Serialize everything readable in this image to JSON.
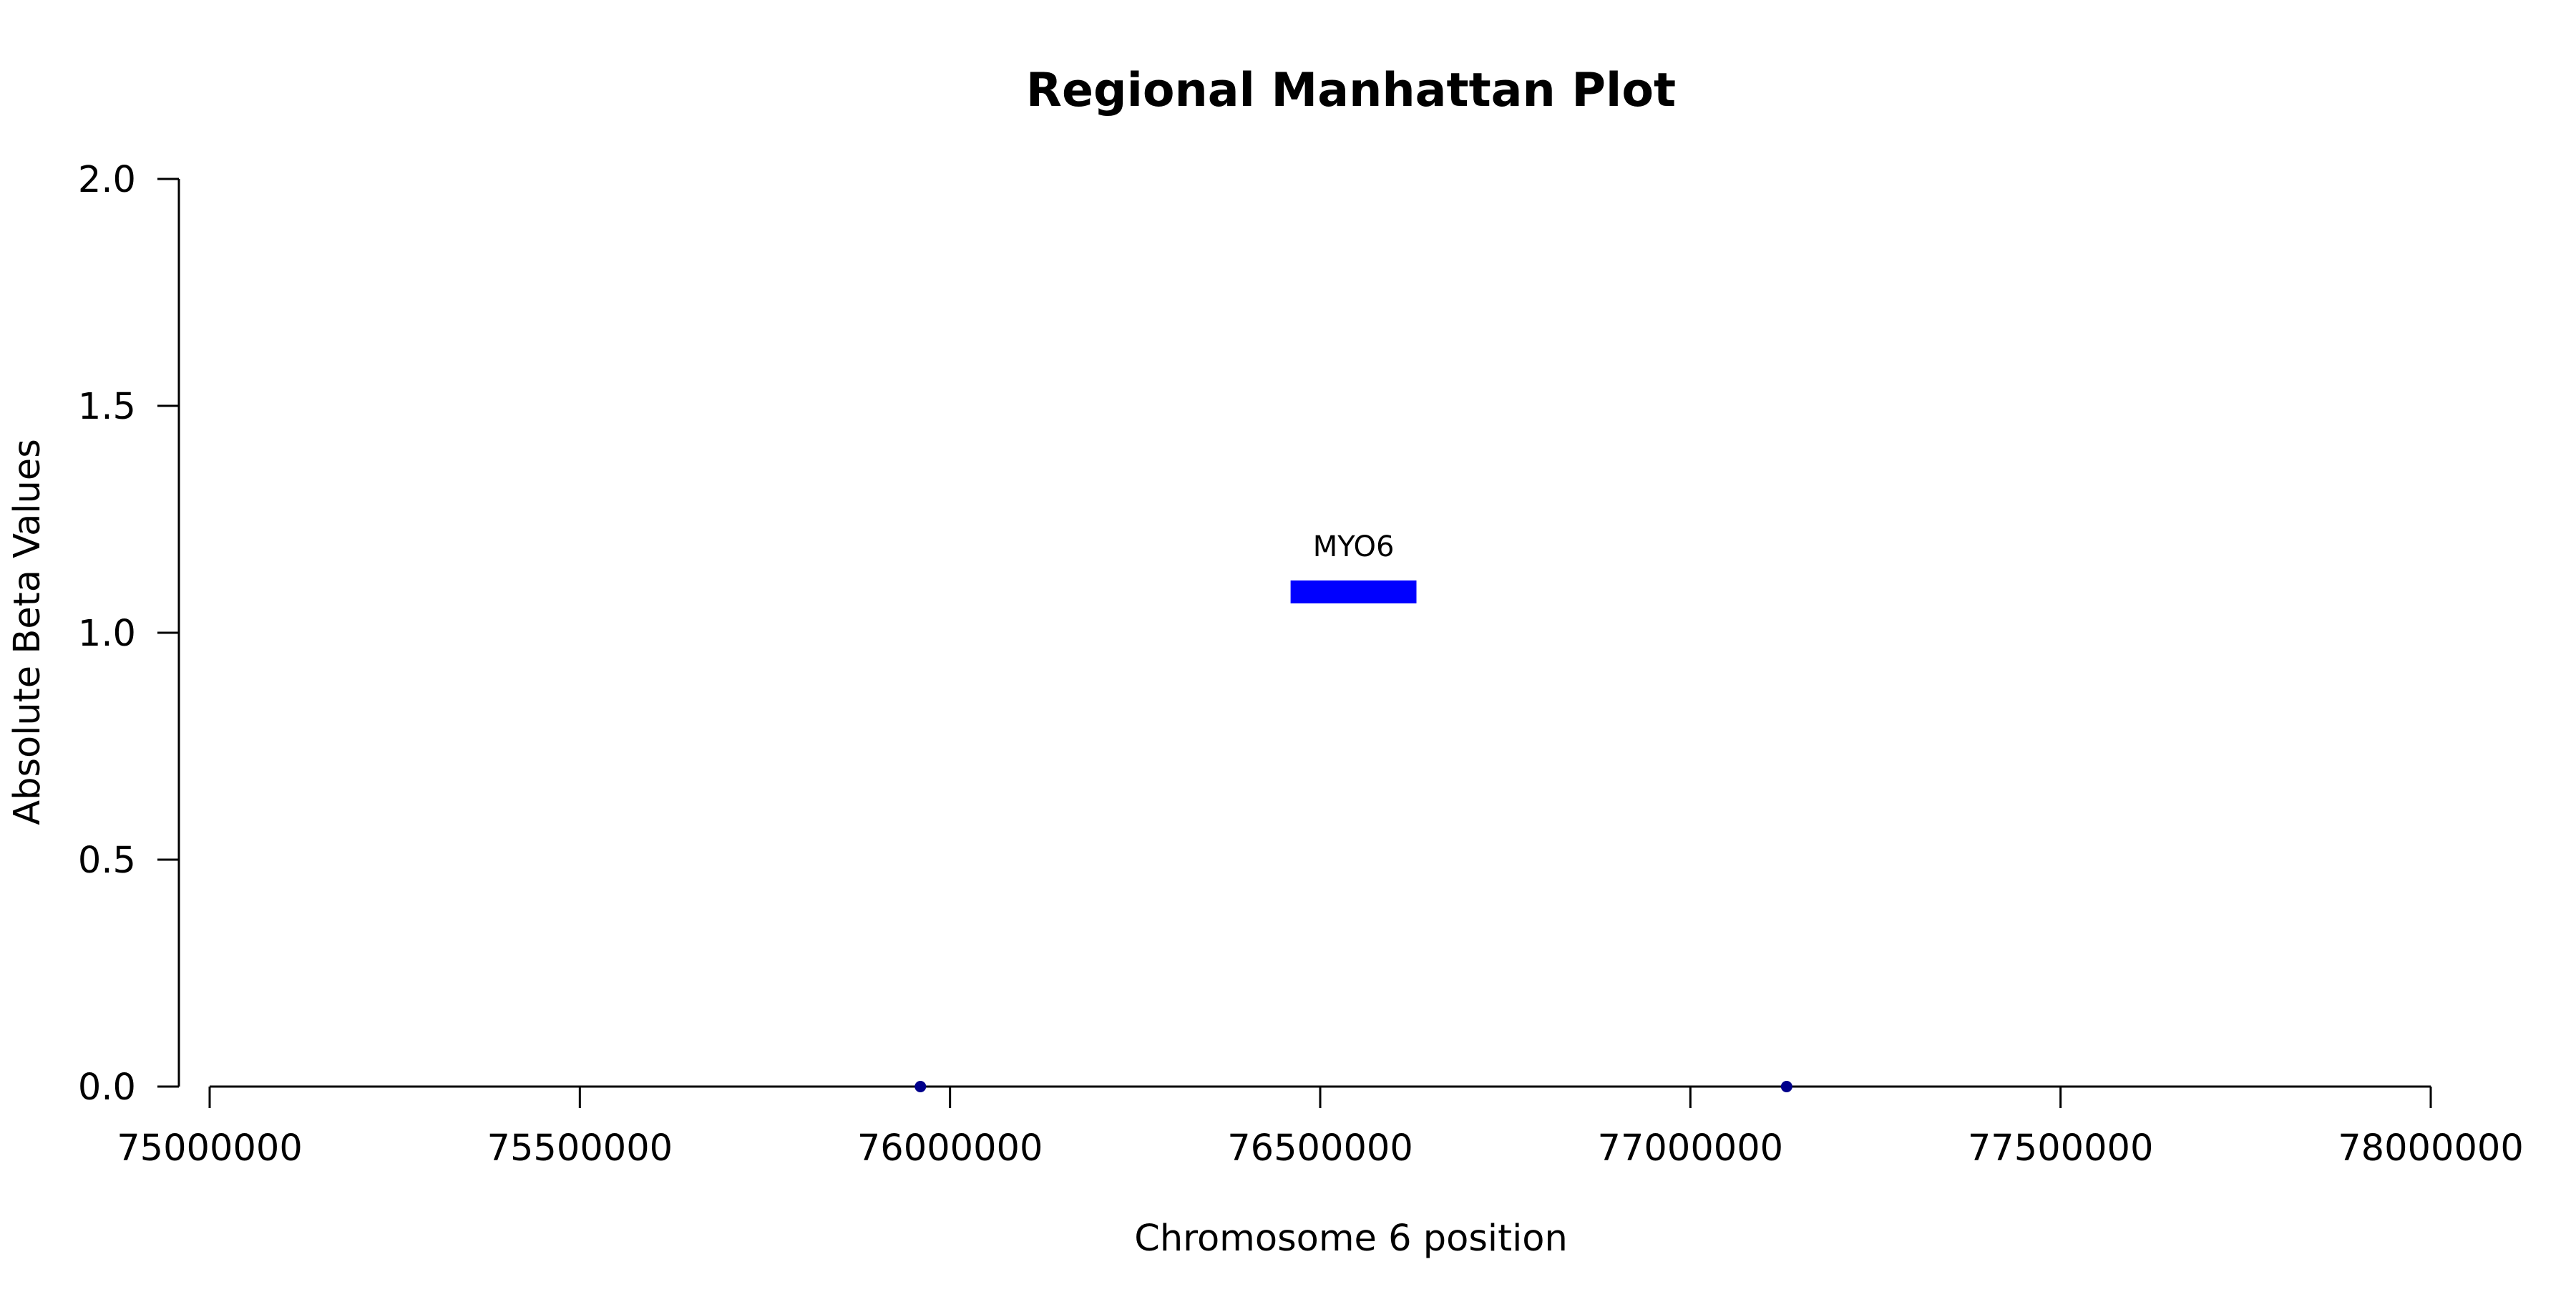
{
  "chart_data": {
    "type": "scatter",
    "title": "Regional Manhattan Plot",
    "xlabel": "Chromosome 6 position",
    "ylabel": "Absolute Beta Values",
    "xlim": [
      75000000,
      78000000
    ],
    "ylim": [
      0,
      2
    ],
    "x_ticks": [
      75000000,
      75500000,
      76000000,
      76500000,
      77000000,
      77500000,
      78000000
    ],
    "x_tick_labels": [
      "75000000",
      "75500000",
      "76000000",
      "76500000",
      "77000000",
      "77500000",
      "78000000"
    ],
    "y_ticks": [
      0,
      0.5,
      1,
      1.5,
      2
    ],
    "y_tick_labels": [
      "0.0",
      "0.5",
      "1.0",
      "1.5",
      "2.0"
    ],
    "grid": false,
    "points": [
      {
        "x": 75960000,
        "y": 0
      },
      {
        "x": 77130000,
        "y": 0
      }
    ],
    "point_color": "#00008b",
    "genes": [
      {
        "name": "MYO6",
        "start": 76460000,
        "end": 76630000,
        "y": 1.09,
        "color": "#0000ff"
      }
    ]
  }
}
